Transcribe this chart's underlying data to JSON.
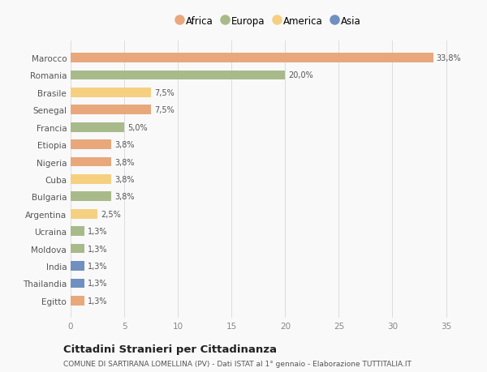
{
  "countries": [
    "Marocco",
    "Romania",
    "Brasile",
    "Senegal",
    "Francia",
    "Etiopia",
    "Nigeria",
    "Cuba",
    "Bulgaria",
    "Argentina",
    "Ucraina",
    "Moldova",
    "India",
    "Thailandia",
    "Egitto"
  ],
  "values": [
    33.8,
    20.0,
    7.5,
    7.5,
    5.0,
    3.8,
    3.8,
    3.8,
    3.8,
    2.5,
    1.3,
    1.3,
    1.3,
    1.3,
    1.3
  ],
  "labels": [
    "33,8%",
    "20,0%",
    "7,5%",
    "7,5%",
    "5,0%",
    "3,8%",
    "3,8%",
    "3,8%",
    "3,8%",
    "2,5%",
    "1,3%",
    "1,3%",
    "1,3%",
    "1,3%",
    "1,3%"
  ],
  "continents": [
    "Africa",
    "Europa",
    "America",
    "Africa",
    "Europa",
    "Africa",
    "Africa",
    "America",
    "Europa",
    "America",
    "Europa",
    "Europa",
    "Asia",
    "Asia",
    "Africa"
  ],
  "colors": {
    "Africa": "#E8A87C",
    "Europa": "#A8BA8A",
    "America": "#F5D080",
    "Asia": "#7090C0"
  },
  "legend_order": [
    "Africa",
    "Europa",
    "America",
    "Asia"
  ],
  "legend_colors": [
    "#E8A87C",
    "#A8BA8A",
    "#F5D080",
    "#7090C0"
  ],
  "title": "Cittadini Stranieri per Cittadinanza",
  "subtitle": "COMUNE DI SARTIRANA LOMELLINA (PV) - Dati ISTAT al 1° gennaio - Elaborazione TUTTITALIA.IT",
  "xlim": [
    0,
    37
  ],
  "xticks": [
    0,
    5,
    10,
    15,
    20,
    25,
    30,
    35
  ],
  "background_color": "#f9f9f9"
}
